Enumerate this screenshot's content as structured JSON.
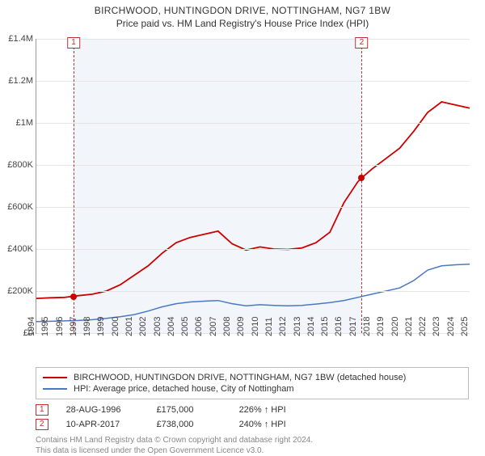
{
  "title_line1": "BIRCHWOOD, HUNTINGDON DRIVE, NOTTINGHAM, NG7 1BW",
  "title_line2": "Price paid vs. HM Land Registry's House Price Index (HPI)",
  "chart": {
    "type": "line",
    "background_color": "#ffffff",
    "shade_color": "#e8eef7",
    "grid_color": "#e5e5e5",
    "axis_color": "#999999",
    "x_min_year": 1994,
    "x_max_year": 2025,
    "x_ticks": [
      1994,
      1995,
      1996,
      1997,
      1998,
      1999,
      2000,
      2001,
      2002,
      2003,
      2004,
      2005,
      2006,
      2007,
      2008,
      2009,
      2010,
      2011,
      2012,
      2013,
      2014,
      2015,
      2016,
      2017,
      2018,
      2019,
      2020,
      2021,
      2022,
      2023,
      2024,
      2025
    ],
    "y_min": 0,
    "y_max": 1400000,
    "y_tick_step": 200000,
    "y_tick_labels": [
      "£0",
      "£200K",
      "£400K",
      "£600K",
      "£800K",
      "£1M",
      "£1.2M",
      "£1.4M"
    ],
    "shade_from_year": 1996.66,
    "shade_to_year": 2017.27,
    "series": [
      {
        "id": "subject",
        "label": "BIRCHWOOD, HUNTINGDON DRIVE, NOTTINGHAM, NG7 1BW (detached house)",
        "color": "#cc0000",
        "line_width": 1.8,
        "data": [
          [
            1994,
            165000
          ],
          [
            1995,
            168000
          ],
          [
            1996,
            170000
          ],
          [
            1996.66,
            175000
          ],
          [
            1997,
            178000
          ],
          [
            1998,
            185000
          ],
          [
            1999,
            200000
          ],
          [
            2000,
            230000
          ],
          [
            2001,
            275000
          ],
          [
            2002,
            320000
          ],
          [
            2003,
            380000
          ],
          [
            2004,
            430000
          ],
          [
            2005,
            455000
          ],
          [
            2006,
            470000
          ],
          [
            2007,
            485000
          ],
          [
            2008,
            425000
          ],
          [
            2009,
            395000
          ],
          [
            2010,
            410000
          ],
          [
            2011,
            400000
          ],
          [
            2012,
            398000
          ],
          [
            2013,
            405000
          ],
          [
            2014,
            430000
          ],
          [
            2015,
            480000
          ],
          [
            2016,
            620000
          ],
          [
            2017,
            720000
          ],
          [
            2017.27,
            738000
          ],
          [
            2018,
            780000
          ],
          [
            2019,
            830000
          ],
          [
            2020,
            880000
          ],
          [
            2021,
            960000
          ],
          [
            2022,
            1050000
          ],
          [
            2023,
            1100000
          ],
          [
            2024,
            1085000
          ],
          [
            2025,
            1070000
          ]
        ]
      },
      {
        "id": "hpi",
        "label": "HPI: Average price, detached house, City of Nottingham",
        "color": "#4a78c4",
        "line_width": 1.5,
        "data": [
          [
            1994,
            55000
          ],
          [
            1995,
            56000
          ],
          [
            1996,
            58000
          ],
          [
            1997,
            60000
          ],
          [
            1998,
            64000
          ],
          [
            1999,
            70000
          ],
          [
            2000,
            78000
          ],
          [
            2001,
            88000
          ],
          [
            2002,
            105000
          ],
          [
            2003,
            125000
          ],
          [
            2004,
            140000
          ],
          [
            2005,
            148000
          ],
          [
            2006,
            152000
          ],
          [
            2007,
            155000
          ],
          [
            2008,
            140000
          ],
          [
            2009,
            130000
          ],
          [
            2010,
            135000
          ],
          [
            2011,
            132000
          ],
          [
            2012,
            130000
          ],
          [
            2013,
            132000
          ],
          [
            2014,
            138000
          ],
          [
            2015,
            145000
          ],
          [
            2016,
            155000
          ],
          [
            2017,
            170000
          ],
          [
            2018,
            185000
          ],
          [
            2019,
            200000
          ],
          [
            2020,
            215000
          ],
          [
            2021,
            250000
          ],
          [
            2022,
            300000
          ],
          [
            2023,
            320000
          ],
          [
            2024,
            325000
          ],
          [
            2025,
            328000
          ]
        ]
      }
    ],
    "markers": [
      {
        "n": 1,
        "year": 1996.66,
        "value": 175000,
        "color": "#cc0000"
      },
      {
        "n": 2,
        "year": 2017.27,
        "value": 738000,
        "color": "#cc0000"
      }
    ]
  },
  "legend_title_fontsize": 11,
  "sales": [
    {
      "n": "1",
      "date": "28-AUG-1996",
      "price": "£175,000",
      "delta": "226% ↑ HPI"
    },
    {
      "n": "2",
      "date": "10-APR-2017",
      "price": "£738,000",
      "delta": "240% ↑ HPI"
    }
  ],
  "ogl_line1": "Contains HM Land Registry data © Crown copyright and database right 2024.",
  "ogl_line2": "This data is licensed under the Open Government Licence v3.0."
}
